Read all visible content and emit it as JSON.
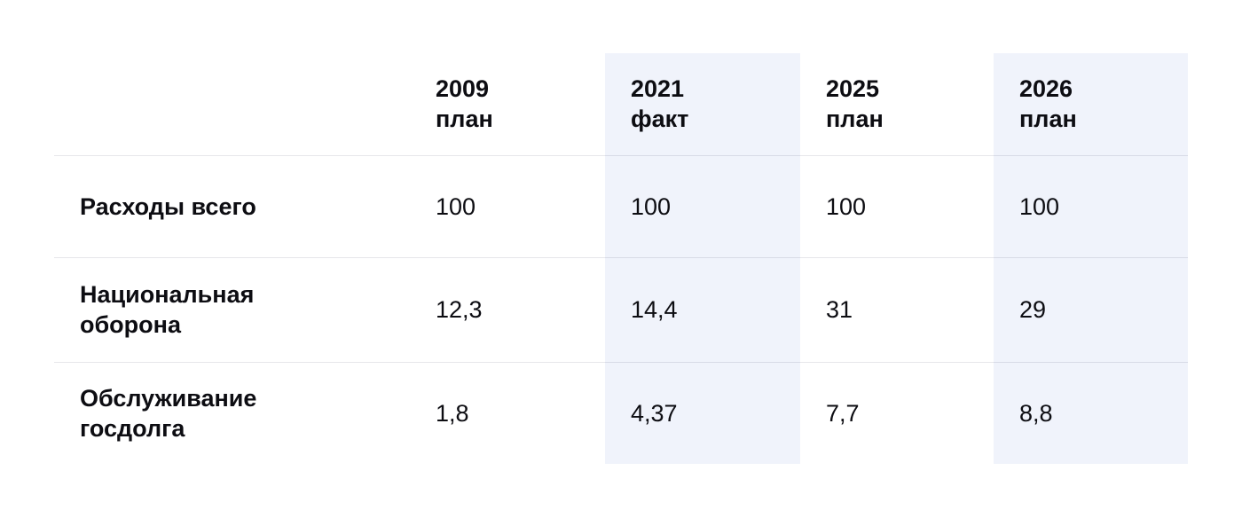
{
  "chart_data": {
    "type": "table",
    "columns": [
      {
        "year": "2009",
        "kind": "план",
        "highlighted": false
      },
      {
        "year": "2021",
        "kind": "факт",
        "highlighted": true
      },
      {
        "year": "2025",
        "kind": "план",
        "highlighted": false
      },
      {
        "year": "2026",
        "kind": "план",
        "highlighted": true
      }
    ],
    "rows": [
      {
        "label": "Расходы всего",
        "values": [
          "100",
          "100",
          "100",
          "100"
        ]
      },
      {
        "label": "Национальная оборона",
        "values": [
          "12,3",
          "14,4",
          "31",
          "29"
        ]
      },
      {
        "label": "Обслуживание госдолга",
        "values": [
          "1,8",
          "4,37",
          "7,7",
          "8,8"
        ]
      }
    ]
  },
  "colors": {
    "highlight_column_bg": "#F0F3FB",
    "divider": "#E5E5EA",
    "text": "#0D0D12",
    "background": "#FFFFFF"
  }
}
